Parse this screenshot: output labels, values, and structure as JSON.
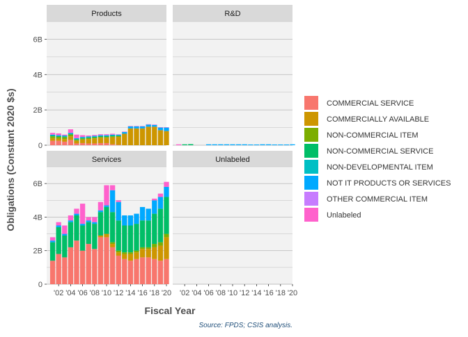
{
  "chart_data": {
    "type": "bar",
    "stacked": true,
    "facets": [
      "Products",
      "R&D",
      "Services",
      "Unlabeled"
    ],
    "ylabel": "Obligations (Constant 2020 $s)",
    "xlabel": "Fiscal Year",
    "ylim": [
      0,
      7
    ],
    "yticks": [
      0,
      2,
      4,
      6
    ],
    "ytick_labels": [
      "0",
      "2B",
      "4B",
      "6B"
    ],
    "x_range": [
      2000,
      2020
    ],
    "xticks": [
      2002,
      2004,
      2006,
      2008,
      2010,
      2012,
      2014,
      2016,
      2018,
      2020
    ],
    "xtick_labels": [
      "'02",
      "'04",
      "'06",
      "'08",
      "'10",
      "'12",
      "'14",
      "'16",
      "'18",
      "'20"
    ],
    "grid": true,
    "legend_position": "right",
    "source": "Source: FPDS; CSIS analysis.",
    "series": [
      {
        "name": "COMMERCIAL SERVICE",
        "color": "#F8766D"
      },
      {
        "name": "COMMERCIALLY AVAILABLE",
        "color": "#CD9600"
      },
      {
        "name": "NON-COMMERCIAL ITEM",
        "color": "#7CAE00"
      },
      {
        "name": "NON-COMMERCIAL SERVICE",
        "color": "#00BE67"
      },
      {
        "name": "NON-DEVELOPMENTAL ITEM",
        "color": "#00BFC4"
      },
      {
        "name": "NOT IT PRODUCTS OR SERVICES",
        "color": "#00A9FF"
      },
      {
        "name": "OTHER COMMERCIAL ITEM",
        "color": "#C77CFF"
      },
      {
        "name": "Unlabeled",
        "color": "#FF61CC"
      }
    ],
    "years": [
      2001,
      2002,
      2003,
      2004,
      2005,
      2006,
      2007,
      2008,
      2009,
      2010,
      2011,
      2012,
      2013,
      2014,
      2015,
      2016,
      2017,
      2018,
      2019,
      2020
    ],
    "panels": {
      "Products": [
        [
          0.25,
          0.25,
          0.2,
          0.3,
          0.1,
          0.12,
          0.1,
          0.1,
          0.12,
          0.12,
          0.05,
          0.02,
          0.0,
          0.0,
          0.0,
          0.0,
          0.0,
          0.0,
          0.0,
          0.0
        ],
        [
          0.15,
          0.12,
          0.15,
          0.2,
          0.15,
          0.2,
          0.25,
          0.28,
          0.3,
          0.3,
          0.4,
          0.45,
          0.65,
          0.95,
          0.95,
          0.95,
          1.05,
          1.05,
          0.85,
          0.8
        ],
        [
          0.1,
          0.1,
          0.1,
          0.1,
          0.05,
          0.05,
          0.05,
          0.05,
          0.05,
          0.05,
          0.05,
          0.05,
          0.0,
          0.0,
          0.0,
          0.0,
          0.0,
          0.0,
          0.0,
          0.0
        ],
        [
          0.05,
          0.05,
          0.05,
          0.05,
          0.05,
          0.05,
          0.05,
          0.05,
          0.05,
          0.05,
          0.05,
          0.03,
          0.0,
          0.0,
          0.0,
          0.0,
          0.0,
          0.0,
          0.0,
          0.0
        ],
        [
          0.0,
          0.0,
          0.0,
          0.0,
          0.0,
          0.0,
          0.0,
          0.0,
          0.0,
          0.0,
          0.0,
          0.0,
          0.0,
          0.0,
          0.0,
          0.0,
          0.0,
          0.0,
          0.0,
          0.0
        ],
        [
          0.05,
          0.05,
          0.05,
          0.05,
          0.05,
          0.05,
          0.05,
          0.05,
          0.05,
          0.05,
          0.05,
          0.05,
          0.1,
          0.12,
          0.12,
          0.12,
          0.12,
          0.1,
          0.15,
          0.2
        ],
        [
          0.0,
          0.0,
          0.0,
          0.0,
          0.0,
          0.0,
          0.0,
          0.0,
          0.0,
          0.0,
          0.0,
          0.0,
          0.0,
          0.0,
          0.0,
          0.0,
          0.0,
          0.0,
          0.0,
          0.0
        ],
        [
          0.1,
          0.1,
          0.05,
          0.2,
          0.2,
          0.1,
          0.05,
          0.05,
          0.05,
          0.05,
          0.05,
          0.02,
          0.02,
          0.02,
          0.02,
          0.02,
          0.02,
          0.02,
          0.02,
          0.02
        ]
      ],
      "R&D": [
        [
          0.0,
          0.0,
          0.0,
          0.0,
          0.0,
          0.0,
          0.0,
          0.0,
          0.0,
          0.0,
          0.0,
          0.0,
          0.0,
          0.0,
          0.0,
          0.0,
          0.0,
          0.0,
          0.0,
          0.0
        ],
        [
          0.0,
          0.0,
          0.0,
          0.0,
          0.0,
          0.0,
          0.0,
          0.0,
          0.0,
          0.0,
          0.0,
          0.0,
          0.0,
          0.0,
          0.0,
          0.0,
          0.0,
          0.0,
          0.0,
          0.0
        ],
        [
          0.0,
          0.0,
          0.0,
          0.0,
          0.0,
          0.0,
          0.0,
          0.0,
          0.0,
          0.0,
          0.0,
          0.0,
          0.0,
          0.0,
          0.0,
          0.0,
          0.0,
          0.0,
          0.0,
          0.0
        ],
        [
          0.0,
          0.05,
          0.06,
          0.0,
          0.0,
          0.0,
          0.0,
          0.0,
          0.0,
          0.0,
          0.0,
          0.0,
          0.0,
          0.0,
          0.0,
          0.0,
          0.0,
          0.0,
          0.0,
          0.0
        ],
        [
          0.0,
          0.0,
          0.0,
          0.0,
          0.0,
          0.0,
          0.0,
          0.0,
          0.0,
          0.0,
          0.0,
          0.0,
          0.0,
          0.0,
          0.0,
          0.0,
          0.0,
          0.0,
          0.0,
          0.0
        ],
        [
          0.0,
          0.0,
          0.0,
          0.0,
          0.0,
          0.05,
          0.05,
          0.05,
          0.05,
          0.05,
          0.05,
          0.05,
          0.04,
          0.04,
          0.05,
          0.05,
          0.04,
          0.04,
          0.04,
          0.05
        ],
        [
          0.0,
          0.0,
          0.0,
          0.0,
          0.0,
          0.0,
          0.0,
          0.0,
          0.0,
          0.0,
          0.0,
          0.0,
          0.0,
          0.0,
          0.0,
          0.0,
          0.0,
          0.0,
          0.0,
          0.0
        ],
        [
          0.05,
          0.0,
          0.0,
          0.0,
          0.0,
          0.0,
          0.0,
          0.0,
          0.0,
          0.0,
          0.0,
          0.0,
          0.0,
          0.0,
          0.0,
          0.0,
          0.0,
          0.0,
          0.0,
          0.0
        ]
      ],
      "Services": [
        [
          1.4,
          1.8,
          1.6,
          2.2,
          2.6,
          2.0,
          2.4,
          2.1,
          2.8,
          2.8,
          2.2,
          1.7,
          1.5,
          1.4,
          1.5,
          1.6,
          1.6,
          1.5,
          1.4,
          1.5
        ],
        [
          0.0,
          0.0,
          0.0,
          0.0,
          0.0,
          0.0,
          0.0,
          0.0,
          0.1,
          0.2,
          0.2,
          0.2,
          0.3,
          0.4,
          0.4,
          0.5,
          0.5,
          0.7,
          0.9,
          1.3
        ],
        [
          0.0,
          0.0,
          0.0,
          0.0,
          0.0,
          0.0,
          0.0,
          0.0,
          0.0,
          0.0,
          0.1,
          0.1,
          0.1,
          0.1,
          0.1,
          0.1,
          0.1,
          0.2,
          0.2,
          0.2
        ],
        [
          1.1,
          1.6,
          1.3,
          1.5,
          1.5,
          1.5,
          1.3,
          1.5,
          1.4,
          1.6,
          1.8,
          1.8,
          1.6,
          1.6,
          1.6,
          1.6,
          1.6,
          1.8,
          2.0,
          2.2
        ],
        [
          0.0,
          0.0,
          0.0,
          0.0,
          0.0,
          0.0,
          0.0,
          0.0,
          0.0,
          0.0,
          0.0,
          0.0,
          0.0,
          0.0,
          0.0,
          0.0,
          0.0,
          0.0,
          0.0,
          0.0
        ],
        [
          0.1,
          0.1,
          0.1,
          0.1,
          0.1,
          0.1,
          0.1,
          0.1,
          0.1,
          0.1,
          1.3,
          1.1,
          0.6,
          0.6,
          0.6,
          0.8,
          0.7,
          0.8,
          0.7,
          0.6
        ],
        [
          0.0,
          0.0,
          0.0,
          0.0,
          0.0,
          0.0,
          0.0,
          0.0,
          0.0,
          0.0,
          0.0,
          0.0,
          0.0,
          0.0,
          0.0,
          0.0,
          0.0,
          0.0,
          0.0,
          0.0
        ],
        [
          0.2,
          0.2,
          0.5,
          0.3,
          0.3,
          1.2,
          0.2,
          0.3,
          0.5,
          1.2,
          0.3,
          0.1,
          0.0,
          0.0,
          0.0,
          0.0,
          0.0,
          0.1,
          0.2,
          0.3
        ]
      ],
      "Unlabeled": [
        [
          0.0,
          0.0,
          0.0,
          0.0,
          0.0,
          0.0,
          0.0,
          0.0,
          0.0,
          0.0,
          0.0,
          0.0,
          0.0,
          0.0,
          0.0,
          0.0,
          0.0,
          0.0,
          0.0,
          0.0
        ],
        [
          0.0,
          0.0,
          0.0,
          0.0,
          0.0,
          0.0,
          0.0,
          0.0,
          0.0,
          0.0,
          0.0,
          0.0,
          0.0,
          0.0,
          0.0,
          0.0,
          0.0,
          0.0,
          0.0,
          0.0
        ],
        [
          0.0,
          0.0,
          0.0,
          0.0,
          0.0,
          0.0,
          0.0,
          0.0,
          0.0,
          0.0,
          0.0,
          0.0,
          0.0,
          0.0,
          0.0,
          0.0,
          0.0,
          0.0,
          0.0,
          0.0
        ],
        [
          0.0,
          0.0,
          0.0,
          0.0,
          0.0,
          0.0,
          0.0,
          0.0,
          0.0,
          0.0,
          0.0,
          0.0,
          0.0,
          0.0,
          0.0,
          0.0,
          0.0,
          0.0,
          0.0,
          0.0
        ],
        [
          0.0,
          0.0,
          0.0,
          0.0,
          0.0,
          0.0,
          0.0,
          0.0,
          0.0,
          0.0,
          0.0,
          0.0,
          0.0,
          0.0,
          0.0,
          0.0,
          0.0,
          0.0,
          0.0,
          0.0
        ],
        [
          0.0,
          0.0,
          0.0,
          0.0,
          0.0,
          0.0,
          0.0,
          0.0,
          0.0,
          0.0,
          0.0,
          0.0,
          0.0,
          0.0,
          0.0,
          0.0,
          0.0,
          0.0,
          0.0,
          0.0
        ],
        [
          0.0,
          0.0,
          0.0,
          0.0,
          0.0,
          0.0,
          0.0,
          0.0,
          0.0,
          0.0,
          0.0,
          0.0,
          0.0,
          0.0,
          0.0,
          0.0,
          0.0,
          0.0,
          0.0,
          0.0
        ],
        [
          0.0,
          0.0,
          0.0,
          0.0,
          0.0,
          0.0,
          0.0,
          0.0,
          0.0,
          0.0,
          0.0,
          0.0,
          0.0,
          0.0,
          0.0,
          0.0,
          0.0,
          0.0,
          0.0,
          0.0
        ]
      ]
    }
  }
}
